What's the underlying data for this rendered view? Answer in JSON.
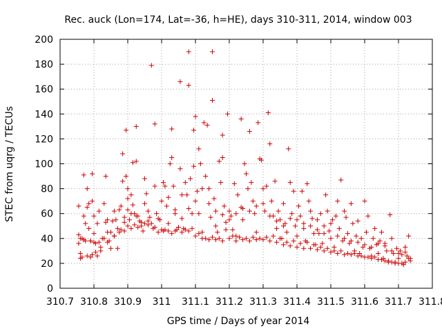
{
  "chart_data": {
    "type": "scatter",
    "title": "Rec. auck (Lon=174, Lat=-36, h=HE), days 310-311, 2014, window 003",
    "xlabel": "GPS time / Days of year 2014",
    "ylabel": "STEC from uqrg / TECUs",
    "xlim": [
      310.7,
      311.8
    ],
    "ylim": [
      0,
      200
    ],
    "xticks": [
      310.7,
      310.8,
      310.9,
      311,
      311.1,
      311.2,
      311.3,
      311.4,
      311.5,
      311.6,
      311.7,
      311.8
    ],
    "xtick_labels": [
      "310.7",
      "310.8",
      "310.9",
      "311",
      "311.1",
      "311.2",
      "311.3",
      "311.4",
      "311.5",
      "311.6",
      "311.7",
      "311.8"
    ],
    "yticks": [
      0,
      20,
      40,
      60,
      80,
      100,
      120,
      140,
      160,
      180,
      200
    ],
    "ytick_labels": [
      "0",
      "20",
      "40",
      "60",
      "80",
      "100",
      "120",
      "140",
      "160",
      "180",
      "200"
    ],
    "grid": true,
    "marker": "plus",
    "color": "#cc0000",
    "points": [
      [
        310.755,
        66
      ],
      [
        310.755,
        43
      ],
      [
        310.755,
        36
      ],
      [
        310.76,
        28
      ],
      [
        310.76,
        24
      ],
      [
        310.765,
        40
      ],
      [
        310.77,
        91
      ],
      [
        310.77,
        58
      ],
      [
        310.775,
        52
      ],
      [
        310.775,
        38
      ],
      [
        310.78,
        80
      ],
      [
        310.78,
        65
      ],
      [
        310.785,
        68
      ],
      [
        310.785,
        48
      ],
      [
        310.79,
        38
      ],
      [
        310.79,
        25
      ],
      [
        310.795,
        92
      ],
      [
        310.795,
        70
      ],
      [
        310.8,
        58
      ],
      [
        310.8,
        44
      ],
      [
        310.805,
        36
      ],
      [
        310.81,
        26
      ],
      [
        310.81,
        52
      ],
      [
        310.815,
        62
      ],
      [
        310.82,
        30
      ],
      [
        310.825,
        40
      ],
      [
        310.83,
        68
      ],
      [
        310.835,
        90
      ],
      [
        310.835,
        53
      ],
      [
        310.84,
        45
      ],
      [
        310.845,
        38
      ],
      [
        310.85,
        32
      ],
      [
        310.855,
        54
      ],
      [
        310.86,
        42
      ],
      [
        310.865,
        55
      ],
      [
        310.87,
        32
      ],
      [
        310.875,
        45
      ],
      [
        310.88,
        66
      ],
      [
        310.885,
        108
      ],
      [
        310.885,
        86
      ],
      [
        310.89,
        53
      ],
      [
        310.89,
        46
      ],
      [
        310.895,
        127
      ],
      [
        310.895,
        90
      ],
      [
        310.9,
        80
      ],
      [
        310.9,
        72
      ],
      [
        310.9,
        63
      ],
      [
        310.905,
        55
      ],
      [
        310.91,
        75
      ],
      [
        310.91,
        48
      ],
      [
        310.915,
        101
      ],
      [
        310.915,
        67
      ],
      [
        310.92,
        60
      ],
      [
        310.925,
        130
      ],
      [
        310.925,
        102
      ],
      [
        310.93,
        58
      ],
      [
        310.935,
        54
      ],
      [
        310.94,
        50
      ],
      [
        310.945,
        46
      ],
      [
        310.95,
        88
      ],
      [
        310.955,
        76
      ],
      [
        310.96,
        62
      ],
      [
        310.96,
        54
      ],
      [
        310.965,
        57
      ],
      [
        310.97,
        179
      ],
      [
        310.975,
        48
      ],
      [
        310.98,
        132
      ],
      [
        310.98,
        82
      ],
      [
        310.985,
        60
      ],
      [
        310.99,
        45
      ],
      [
        310.995,
        55
      ],
      [
        311.005,
        85
      ],
      [
        311.005,
        46
      ],
      [
        311.01,
        82
      ],
      [
        311.015,
        66
      ],
      [
        311.02,
        52
      ],
      [
        311.025,
        100
      ],
      [
        311.03,
        128
      ],
      [
        311.03,
        105
      ],
      [
        311.035,
        82
      ],
      [
        311.04,
        63
      ],
      [
        311.045,
        47
      ],
      [
        311.055,
        166
      ],
      [
        311.055,
        96
      ],
      [
        311.06,
        56
      ],
      [
        311.065,
        48
      ],
      [
        311.07,
        85
      ],
      [
        311.075,
        75
      ],
      [
        311.08,
        190
      ],
      [
        311.08,
        163
      ],
      [
        311.085,
        88
      ],
      [
        311.09,
        60
      ],
      [
        311.095,
        127
      ],
      [
        311.095,
        98
      ],
      [
        311.1,
        138
      ],
      [
        311.105,
        78
      ],
      [
        311.11,
        112
      ],
      [
        311.11,
        60
      ],
      [
        311.115,
        100
      ],
      [
        311.12,
        45
      ],
      [
        311.125,
        133
      ],
      [
        311.13,
        90
      ],
      [
        311.135,
        131
      ],
      [
        311.14,
        80
      ],
      [
        311.145,
        57
      ],
      [
        311.15,
        190
      ],
      [
        311.15,
        151
      ],
      [
        311.155,
        72
      ],
      [
        311.16,
        50
      ],
      [
        311.165,
        45
      ],
      [
        311.17,
        102
      ],
      [
        311.175,
        85
      ],
      [
        311.18,
        123
      ],
      [
        311.18,
        105
      ],
      [
        311.185,
        66
      ],
      [
        311.19,
        53
      ],
      [
        311.195,
        140
      ],
      [
        311.2,
        62
      ],
      [
        311.205,
        58
      ],
      [
        311.21,
        47
      ],
      [
        311.215,
        84
      ],
      [
        311.22,
        42
      ],
      [
        311.225,
        75
      ],
      [
        311.235,
        136
      ],
      [
        311.235,
        65
      ],
      [
        311.24,
        55
      ],
      [
        311.245,
        100
      ],
      [
        311.25,
        92
      ],
      [
        311.255,
        80
      ],
      [
        311.26,
        126
      ],
      [
        311.265,
        85
      ],
      [
        311.27,
        70
      ],
      [
        311.275,
        60
      ],
      [
        311.28,
        45
      ],
      [
        311.285,
        133
      ],
      [
        311.29,
        104
      ],
      [
        311.295,
        103
      ],
      [
        311.3,
        80
      ],
      [
        311.305,
        62
      ],
      [
        311.31,
        82
      ],
      [
        311.315,
        141
      ],
      [
        311.32,
        116
      ],
      [
        311.325,
        70
      ],
      [
        311.33,
        58
      ],
      [
        311.335,
        86
      ],
      [
        311.34,
        48
      ],
      [
        311.345,
        62
      ],
      [
        311.35,
        55
      ],
      [
        311.355,
        40
      ],
      [
        311.36,
        68
      ],
      [
        311.365,
        52
      ],
      [
        311.37,
        45
      ],
      [
        311.375,
        112
      ],
      [
        311.38,
        85
      ],
      [
        311.385,
        60
      ],
      [
        311.39,
        78
      ],
      [
        311.395,
        50
      ],
      [
        311.4,
        42
      ],
      [
        311.405,
        66
      ],
      [
        311.41,
        58
      ],
      [
        311.415,
        78
      ],
      [
        311.42,
        48
      ],
      [
        311.425,
        38
      ],
      [
        311.43,
        84
      ],
      [
        311.435,
        70
      ],
      [
        311.44,
        62
      ],
      [
        311.445,
        56
      ],
      [
        311.45,
        44
      ],
      [
        311.455,
        35
      ],
      [
        311.46,
        55
      ],
      [
        311.465,
        44
      ],
      [
        311.47,
        60
      ],
      [
        311.475,
        36
      ],
      [
        311.48,
        50
      ],
      [
        311.485,
        75
      ],
      [
        311.49,
        62
      ],
      [
        311.495,
        46
      ],
      [
        311.5,
        40
      ],
      [
        311.505,
        55
      ],
      [
        311.51,
        33
      ],
      [
        311.515,
        58
      ],
      [
        311.52,
        70
      ],
      [
        311.525,
        48
      ],
      [
        311.53,
        87
      ],
      [
        311.535,
        38
      ],
      [
        311.54,
        62
      ],
      [
        311.545,
        57
      ],
      [
        311.55,
        44
      ],
      [
        311.555,
        36
      ],
      [
        311.56,
        68
      ],
      [
        311.565,
        52
      ],
      [
        311.57,
        30
      ],
      [
        311.575,
        42
      ],
      [
        311.58,
        54
      ],
      [
        311.585,
        28
      ],
      [
        311.59,
        40
      ],
      [
        311.595,
        33
      ],
      [
        311.6,
        70
      ],
      [
        311.605,
        45
      ],
      [
        311.61,
        58
      ],
      [
        311.615,
        32
      ],
      [
        311.62,
        26
      ],
      [
        311.625,
        40
      ],
      [
        311.63,
        48
      ],
      [
        311.635,
        35
      ],
      [
        311.64,
        28
      ],
      [
        311.645,
        38
      ],
      [
        311.65,
        45
      ],
      [
        311.655,
        24
      ],
      [
        311.66,
        36
      ],
      [
        311.665,
        30
      ],
      [
        311.67,
        21
      ],
      [
        311.675,
        59
      ],
      [
        311.68,
        40
      ],
      [
        311.685,
        28
      ],
      [
        311.69,
        20
      ],
      [
        311.695,
        32
      ],
      [
        311.7,
        24
      ],
      [
        311.705,
        30
      ],
      [
        311.71,
        27
      ],
      [
        311.715,
        19
      ],
      [
        311.72,
        33
      ],
      [
        311.725,
        26
      ],
      [
        311.73,
        42
      ],
      [
        311.735,
        22
      ],
      [
        310.76,
        40
      ],
      [
        310.77,
        39
      ],
      [
        310.79,
        38
      ],
      [
        310.8,
        37
      ],
      [
        310.815,
        37
      ],
      [
        310.83,
        40
      ],
      [
        310.85,
        45
      ],
      [
        310.87,
        48
      ],
      [
        310.89,
        57
      ],
      [
        310.91,
        60
      ],
      [
        310.93,
        49
      ],
      [
        310.95,
        52
      ],
      [
        310.97,
        52
      ],
      [
        310.99,
        56
      ],
      [
        311.01,
        47
      ],
      [
        311.03,
        44
      ],
      [
        311.05,
        49
      ],
      [
        311.07,
        47
      ],
      [
        311.09,
        48
      ],
      [
        311.11,
        44
      ],
      [
        311.13,
        40
      ],
      [
        311.15,
        41
      ],
      [
        311.17,
        40
      ],
      [
        311.19,
        47
      ],
      [
        311.21,
        42
      ],
      [
        311.23,
        41
      ],
      [
        311.25,
        40
      ],
      [
        311.27,
        41
      ],
      [
        311.29,
        40
      ],
      [
        311.31,
        41
      ],
      [
        311.33,
        42
      ],
      [
        311.35,
        40
      ],
      [
        311.37,
        37
      ],
      [
        311.39,
        38
      ],
      [
        311.41,
        36
      ],
      [
        311.43,
        37
      ],
      [
        311.45,
        35
      ],
      [
        311.47,
        33
      ],
      [
        311.49,
        32
      ],
      [
        311.51,
        30
      ],
      [
        311.53,
        30
      ],
      [
        311.55,
        28
      ],
      [
        311.57,
        28
      ],
      [
        311.59,
        26
      ],
      [
        311.61,
        25
      ],
      [
        311.63,
        25
      ],
      [
        311.65,
        23
      ],
      [
        311.67,
        22
      ],
      [
        311.69,
        21
      ],
      [
        311.71,
        20
      ],
      [
        311.73,
        24
      ],
      [
        310.765,
        25
      ],
      [
        310.78,
        26
      ],
      [
        310.795,
        27
      ],
      [
        310.805,
        29
      ],
      [
        310.82,
        33
      ],
      [
        310.84,
        37
      ],
      [
        310.86,
        42
      ],
      [
        310.88,
        47
      ],
      [
        310.9,
        50
      ],
      [
        310.92,
        51
      ],
      [
        310.94,
        53
      ],
      [
        310.96,
        51
      ],
      [
        310.98,
        49
      ],
      [
        311,
        47
      ],
      [
        311.02,
        46
      ],
      [
        311.04,
        46
      ],
      [
        311.06,
        45
      ],
      [
        311.08,
        46
      ],
      [
        311.1,
        42
      ],
      [
        311.12,
        40
      ],
      [
        311.14,
        39
      ],
      [
        311.16,
        39
      ],
      [
        311.18,
        38
      ],
      [
        311.2,
        40
      ],
      [
        311.22,
        38
      ],
      [
        311.24,
        39
      ],
      [
        311.26,
        38
      ],
      [
        311.28,
        39
      ],
      [
        311.3,
        39
      ],
      [
        311.32,
        38
      ],
      [
        311.34,
        37
      ],
      [
        311.36,
        35
      ],
      [
        311.38,
        34
      ],
      [
        311.4,
        33
      ],
      [
        311.42,
        32
      ],
      [
        311.44,
        32
      ],
      [
        311.46,
        31
      ],
      [
        311.48,
        30
      ],
      [
        311.5,
        29
      ],
      [
        311.52,
        28
      ],
      [
        311.54,
        27
      ],
      [
        311.56,
        27
      ],
      [
        311.58,
        26
      ],
      [
        311.6,
        25
      ],
      [
        311.62,
        24
      ],
      [
        311.64,
        23
      ],
      [
        311.66,
        22
      ],
      [
        311.68,
        21
      ],
      [
        311.7,
        20
      ],
      [
        311.72,
        21
      ],
      [
        311.735,
        24
      ],
      [
        310.84,
        55
      ],
      [
        310.86,
        62
      ],
      [
        310.875,
        63
      ],
      [
        310.925,
        58
      ],
      [
        310.95,
        68
      ],
      [
        311.0,
        70
      ],
      [
        311.02,
        73
      ],
      [
        311.04,
        60
      ],
      [
        311.06,
        75
      ],
      [
        311.08,
        64
      ],
      [
        311.1,
        70
      ],
      [
        311.12,
        80
      ],
      [
        311.14,
        68
      ],
      [
        311.16,
        62
      ],
      [
        311.18,
        59
      ],
      [
        311.2,
        55
      ],
      [
        311.22,
        60
      ],
      [
        311.24,
        64
      ],
      [
        311.26,
        62
      ],
      [
        311.28,
        66
      ],
      [
        311.3,
        68
      ],
      [
        311.32,
        58
      ],
      [
        311.34,
        54
      ],
      [
        311.36,
        50
      ],
      [
        311.38,
        56
      ],
      [
        311.4,
        55
      ],
      [
        311.42,
        52
      ],
      [
        311.44,
        50
      ],
      [
        311.46,
        47
      ],
      [
        311.48,
        44
      ],
      [
        311.5,
        52
      ],
      [
        311.52,
        42
      ],
      [
        311.54,
        40
      ],
      [
        311.56,
        38
      ],
      [
        311.58,
        37
      ],
      [
        311.6,
        35
      ],
      [
        311.62,
        33
      ],
      [
        311.64,
        36
      ],
      [
        311.66,
        34
      ],
      [
        311.68,
        30
      ],
      [
        311.7,
        28
      ],
      [
        311.72,
        29
      ]
    ]
  }
}
